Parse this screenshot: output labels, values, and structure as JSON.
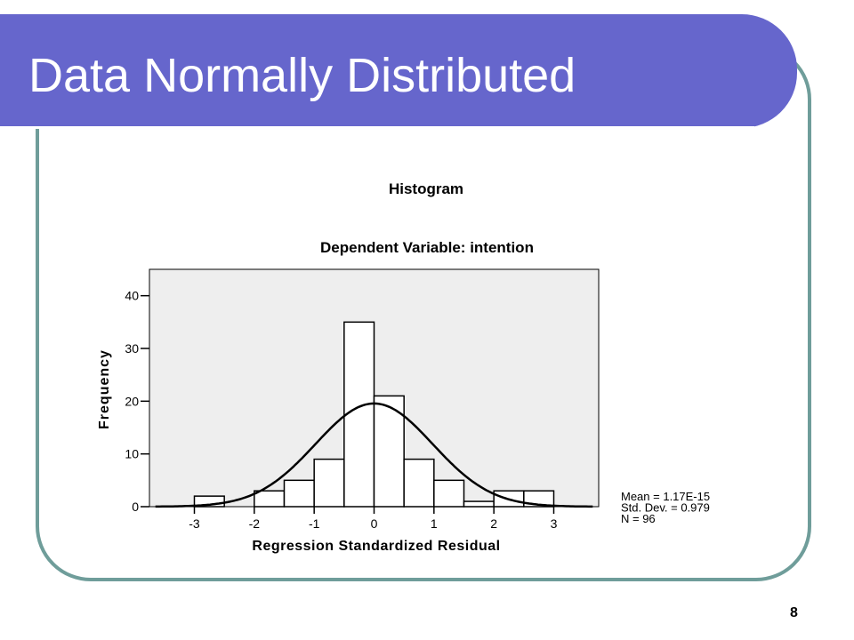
{
  "slide": {
    "title": "Data Normally Distributed",
    "page_number": "8"
  },
  "colors": {
    "title_bar": "#6666cc",
    "frame_border": "#6f9d9a",
    "plot_background": "#eeeeee"
  },
  "chart_data": {
    "type": "bar",
    "title": "Histogram",
    "subtitle": "Dependent Variable: intention",
    "xlabel": "Regression Standardized Residual",
    "ylabel": "Frequency",
    "xlim": [
      -3.75,
      3.75
    ],
    "ylim": [
      0,
      45
    ],
    "x_ticks": [
      -3,
      -2,
      -1,
      0,
      1,
      2,
      3
    ],
    "x_tick_labels": [
      "-3",
      "-2",
      "-1",
      "0",
      "1",
      "2",
      "3"
    ],
    "y_ticks": [
      0,
      10,
      20,
      30,
      40
    ],
    "y_tick_labels": [
      "0",
      "10",
      "20",
      "30",
      "40"
    ],
    "grid": false,
    "bin_width": 0.5,
    "bins": [
      {
        "center": -2.75,
        "value": 2
      },
      {
        "center": -1.75,
        "value": 3
      },
      {
        "center": -1.25,
        "value": 5
      },
      {
        "center": -0.75,
        "value": 9
      },
      {
        "center": -0.25,
        "value": 35
      },
      {
        "center": 0.25,
        "value": 21
      },
      {
        "center": 0.75,
        "value": 9
      },
      {
        "center": 1.25,
        "value": 5
      },
      {
        "center": 1.75,
        "value": 1
      },
      {
        "center": 2.25,
        "value": 3
      },
      {
        "center": 2.75,
        "value": 3
      }
    ],
    "normal_curve": {
      "mean": 0,
      "std_dev": 0.979,
      "n": 96
    },
    "stats": [
      "Mean = 1.17E-15",
      "Std. Dev. = 0.979",
      "N = 96"
    ]
  }
}
